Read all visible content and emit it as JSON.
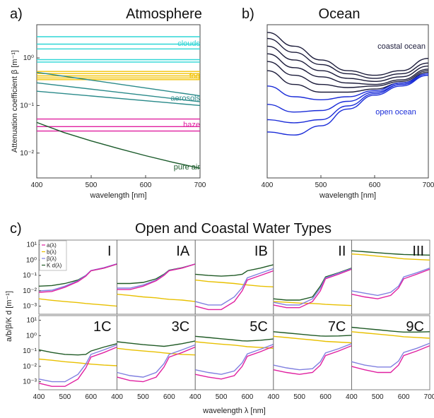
{
  "figure": {
    "panel_a_letter": "a)",
    "panel_b_letter": "b)",
    "panel_c_letter": "c)"
  },
  "colors": {
    "clouds": "#2fd6d6",
    "fog": "#f2c200",
    "aerosols": "#2a8a8a",
    "haze": "#e020a0",
    "pure_air": "#1a5a2a",
    "coastal": "#1b1b3a",
    "open": "#1a2cd8",
    "kd": "#1f5a25",
    "b": "#e8c000",
    "a": "#e020a0",
    "beta": "#8080e0"
  },
  "chart_data": [
    {
      "type": "line",
      "title": "Atmosphere",
      "xlabel": "wavelength [nm]",
      "ylabel": "Attenuation coefficient  β [m⁻¹]",
      "xlim": [
        400,
        700
      ],
      "ylim": [
        0.003,
        5
      ],
      "yscale": "log",
      "xticks": [
        "400",
        "500",
        "600",
        "700"
      ],
      "yticks": [
        {
          "label": "10⁰",
          "value": 1
        },
        {
          "label": "10⁻¹",
          "value": 0.1
        },
        {
          "label": "10⁻²",
          "value": 0.01
        }
      ],
      "annotations": [
        {
          "text": "clouds",
          "color_key": "clouds"
        },
        {
          "text": "fog",
          "color_key": "fog"
        },
        {
          "text": "aerosols",
          "color_key": "aerosols"
        },
        {
          "text": "haze",
          "color_key": "haze"
        },
        {
          "text": "pure air",
          "color_key": "pure_air"
        }
      ],
      "series": [
        {
          "group": "clouds",
          "x": [
            400,
            700
          ],
          "y": [
            2.8,
            2.8
          ]
        },
        {
          "group": "clouds",
          "x": [
            400,
            700
          ],
          "y": [
            1.95,
            1.95
          ]
        },
        {
          "group": "clouds",
          "x": [
            400,
            700
          ],
          "y": [
            1.55,
            1.55
          ]
        },
        {
          "group": "clouds",
          "x": [
            400,
            700
          ],
          "y": [
            0.92,
            0.92
          ]
        },
        {
          "group": "clouds",
          "x": [
            400,
            700
          ],
          "y": [
            0.82,
            0.82
          ]
        },
        {
          "group": "fog",
          "x": [
            400,
            700
          ],
          "y": [
            0.52,
            0.52
          ]
        },
        {
          "group": "fog",
          "x": [
            400,
            700
          ],
          "y": [
            0.47,
            0.47
          ]
        },
        {
          "group": "fog",
          "x": [
            400,
            700
          ],
          "y": [
            0.42,
            0.42
          ]
        },
        {
          "group": "fog",
          "x": [
            400,
            700
          ],
          "y": [
            0.38,
            0.38
          ]
        },
        {
          "group": "fog",
          "x": [
            400,
            700
          ],
          "y": [
            0.35,
            0.35
          ]
        },
        {
          "group": "aerosols",
          "x": [
            400,
            700
          ],
          "y": [
            0.5,
            0.16
          ]
        },
        {
          "group": "aerosols",
          "x": [
            400,
            700
          ],
          "y": [
            0.3,
            0.12
          ]
        },
        {
          "group": "aerosols",
          "x": [
            400,
            700
          ],
          "y": [
            0.2,
            0.1
          ]
        },
        {
          "group": "haze",
          "x": [
            400,
            700
          ],
          "y": [
            0.052,
            0.052
          ]
        },
        {
          "group": "haze",
          "x": [
            400,
            700
          ],
          "y": [
            0.036,
            0.036
          ]
        },
        {
          "group": "haze",
          "x": [
            400,
            700
          ],
          "y": [
            0.029,
            0.029
          ]
        },
        {
          "group": "pure_air",
          "x": [
            400,
            450,
            500,
            550,
            600,
            650,
            700
          ],
          "y": [
            0.044,
            0.027,
            0.018,
            0.0125,
            0.0088,
            0.0064,
            0.0048
          ]
        }
      ]
    },
    {
      "type": "line",
      "title": "Ocean",
      "xlabel": "wavelength [nm]",
      "xlim": [
        400,
        700
      ],
      "xticks": [
        "400",
        "500",
        "600",
        "700"
      ],
      "annotations": [
        {
          "text": "coastal ocean",
          "color_key": "coastal"
        },
        {
          "text": "open ocean",
          "color_key": "open"
        }
      ],
      "series": [
        {
          "group": "coastal",
          "x": [
            400,
            450,
            500,
            550,
            600,
            650,
            700
          ],
          "y": [
            0.05,
            0.14,
            0.23,
            0.3,
            0.33,
            0.3,
            0.22
          ]
        },
        {
          "group": "coastal",
          "x": [
            400,
            450,
            500,
            550,
            600,
            650,
            700
          ],
          "y": [
            0.09,
            0.18,
            0.26,
            0.32,
            0.35,
            0.32,
            0.25
          ]
        },
        {
          "group": "coastal",
          "x": [
            400,
            450,
            500,
            550,
            600,
            650,
            700
          ],
          "y": [
            0.14,
            0.23,
            0.3,
            0.35,
            0.37,
            0.34,
            0.27
          ]
        },
        {
          "group": "coastal",
          "x": [
            400,
            450,
            500,
            550,
            600,
            650,
            700
          ],
          "y": [
            0.19,
            0.28,
            0.34,
            0.38,
            0.39,
            0.36,
            0.29
          ]
        },
        {
          "group": "coastal",
          "x": [
            400,
            450,
            500,
            550,
            600,
            650,
            700
          ],
          "y": [
            0.24,
            0.33,
            0.39,
            0.41,
            0.4,
            0.37,
            0.3
          ]
        },
        {
          "group": "coastal",
          "x": [
            400,
            450,
            500,
            550,
            600,
            650,
            700
          ],
          "y": [
            0.3,
            0.39,
            0.44,
            0.44,
            0.42,
            0.38,
            0.31
          ]
        },
        {
          "group": "open",
          "x": [
            400,
            450,
            500,
            550,
            600,
            650,
            700
          ],
          "y": [
            0.4,
            0.47,
            0.49,
            0.47,
            0.43,
            0.38,
            0.32
          ]
        },
        {
          "group": "open",
          "x": [
            400,
            450,
            500,
            550,
            600,
            650,
            700
          ],
          "y": [
            0.52,
            0.57,
            0.56,
            0.5,
            0.44,
            0.39,
            0.32
          ]
        },
        {
          "group": "open",
          "x": [
            400,
            450,
            500,
            550,
            600,
            650,
            700
          ],
          "y": [
            0.62,
            0.64,
            0.62,
            0.53,
            0.45,
            0.39,
            0.33
          ]
        },
        {
          "group": "open",
          "x": [
            400,
            450,
            500,
            550,
            600,
            650,
            700
          ],
          "y": [
            0.7,
            0.72,
            0.66,
            0.55,
            0.46,
            0.4,
            0.33
          ]
        }
      ]
    },
    {
      "type": "line",
      "title": "Open and Coastal Water Types",
      "xlabel": "wavelength λ [nm]",
      "ylabel": "a/b/β/K d  [m⁻¹]",
      "xticks": [
        "400",
        "500",
        "600",
        "700"
      ],
      "xlim": [
        400,
        700
      ],
      "ylim": [
        0.0003,
        20
      ],
      "yscale": "log",
      "yticks": [
        {
          "label": "10¹",
          "value": 10
        },
        {
          "label": "10⁰",
          "value": 1
        },
        {
          "label": "10⁻¹",
          "value": 0.1
        },
        {
          "label": "10⁻²",
          "value": 0.01
        },
        {
          "label": "10⁻³",
          "value": 0.001
        }
      ],
      "legend": [
        "a(λ)",
        "b(λ)",
        "β(λ)",
        "K d(λ)"
      ],
      "legend_position": "top-left",
      "x": [
        400,
        450,
        500,
        550,
        580,
        600,
        650,
        700
      ],
      "panels": [
        {
          "label": "I",
          "kd": [
            0.02,
            0.022,
            0.03,
            0.05,
            0.1,
            0.2,
            0.3,
            0.55
          ],
          "b": [
            0.003,
            0.0024,
            0.002,
            0.0017,
            0.0015,
            0.0014,
            0.0012,
            0.001
          ],
          "a": [
            0.008,
            0.009,
            0.017,
            0.04,
            0.09,
            0.2,
            0.3,
            0.55
          ],
          "beta": [
            0.01,
            0.011,
            0.02,
            0.045,
            0.1,
            0.21,
            0.32,
            0.57
          ]
        },
        {
          "label": "IA",
          "kd": [
            0.03,
            0.03,
            0.035,
            0.06,
            0.12,
            0.22,
            0.32,
            0.55
          ],
          "b": [
            0.006,
            0.005,
            0.004,
            0.0035,
            0.003,
            0.0028,
            0.0025,
            0.002
          ],
          "a": [
            0.012,
            0.012,
            0.02,
            0.045,
            0.1,
            0.2,
            0.3,
            0.55
          ],
          "beta": [
            0.015,
            0.015,
            0.024,
            0.05,
            0.11,
            0.21,
            0.31,
            0.56
          ]
        },
        {
          "label": "IB",
          "kd": [
            0.12,
            0.1,
            0.09,
            0.1,
            0.12,
            0.2,
            0.3,
            0.5
          ],
          "b": [
            0.05,
            0.04,
            0.035,
            0.03,
            0.026,
            0.024,
            0.02,
            0.018
          ],
          "a": [
            0.001,
            0.0006,
            0.0006,
            0.002,
            0.01,
            0.05,
            0.1,
            0.2
          ],
          "beta": [
            0.002,
            0.0012,
            0.0012,
            0.004,
            0.016,
            0.07,
            0.14,
            0.28
          ]
        },
        {
          "label": "II",
          "kd": [
            0.003,
            0.0025,
            0.0025,
            0.004,
            0.02,
            0.08,
            0.15,
            0.3
          ],
          "b": [
            0.002,
            0.0018,
            0.0016,
            0.0015,
            0.0014,
            0.0013,
            0.0012,
            0.0011
          ],
          "a": [
            0.0012,
            0.0008,
            0.0008,
            0.002,
            0.01,
            0.06,
            0.12,
            0.25
          ],
          "beta": [
            0.0018,
            0.0012,
            0.0012,
            0.003,
            0.015,
            0.07,
            0.14,
            0.28
          ]
        },
        {
          "label": "III",
          "kd": [
            4,
            3.5,
            3,
            2.6,
            2.4,
            2.3,
            2.2,
            2.1
          ],
          "b": [
            2.5,
            2.2,
            1.8,
            1.5,
            1.3,
            1.2,
            1.1,
            1
          ],
          "a": [
            0.006,
            0.004,
            0.003,
            0.005,
            0.015,
            0.06,
            0.12,
            0.25
          ],
          "beta": [
            0.01,
            0.007,
            0.005,
            0.008,
            0.02,
            0.08,
            0.15,
            0.3
          ]
        },
        {
          "label": "1C",
          "kd": [
            0.12,
            0.08,
            0.06,
            0.055,
            0.06,
            0.1,
            0.18,
            0.3
          ],
          "b": [
            0.03,
            0.025,
            0.02,
            0.017,
            0.015,
            0.014,
            0.012,
            0.011
          ],
          "a": [
            0.0008,
            0.0005,
            0.0005,
            0.0015,
            0.008,
            0.04,
            0.08,
            0.18
          ],
          "beta": [
            0.0015,
            0.001,
            0.001,
            0.003,
            0.014,
            0.06,
            0.12,
            0.25
          ]
        },
        {
          "label": "3C",
          "kd": [
            0.4,
            0.32,
            0.26,
            0.22,
            0.2,
            0.22,
            0.3,
            0.45
          ],
          "b": [
            0.15,
            0.12,
            0.1,
            0.085,
            0.075,
            0.07,
            0.06,
            0.055
          ],
          "a": [
            0.002,
            0.0012,
            0.001,
            0.002,
            0.009,
            0.04,
            0.08,
            0.18
          ],
          "beta": [
            0.004,
            0.0025,
            0.002,
            0.004,
            0.015,
            0.06,
            0.12,
            0.25
          ]
        },
        {
          "label": "5C",
          "kd": [
            0.9,
            0.75,
            0.62,
            0.52,
            0.46,
            0.45,
            0.5,
            0.6
          ],
          "b": [
            0.4,
            0.33,
            0.28,
            0.24,
            0.21,
            0.19,
            0.17,
            0.15
          ],
          "a": [
            0.003,
            0.002,
            0.0015,
            0.0025,
            0.01,
            0.045,
            0.09,
            0.2
          ],
          "beta": [
            0.006,
            0.004,
            0.003,
            0.005,
            0.017,
            0.065,
            0.13,
            0.27
          ]
        },
        {
          "label": "7C",
          "kd": [
            1.8,
            1.5,
            1.25,
            1.05,
            0.95,
            0.92,
            0.95,
            1.05
          ],
          "b": [
            0.9,
            0.75,
            0.62,
            0.52,
            0.46,
            0.42,
            0.38,
            0.34
          ],
          "a": [
            0.006,
            0.004,
            0.003,
            0.004,
            0.012,
            0.05,
            0.1,
            0.22
          ],
          "beta": [
            0.012,
            0.008,
            0.006,
            0.007,
            0.02,
            0.075,
            0.14,
            0.3
          ]
        },
        {
          "label": "9C",
          "kd": [
            3.5,
            2.9,
            2.4,
            2.0,
            1.8,
            1.7,
            1.7,
            1.8
          ],
          "b": [
            1.8,
            1.5,
            1.25,
            1.05,
            0.92,
            0.85,
            0.76,
            0.68
          ],
          "a": [
            0.01,
            0.006,
            0.004,
            0.004,
            0.012,
            0.05,
            0.1,
            0.22
          ],
          "beta": [
            0.02,
            0.012,
            0.009,
            0.009,
            0.022,
            0.08,
            0.15,
            0.32
          ]
        }
      ]
    }
  ]
}
